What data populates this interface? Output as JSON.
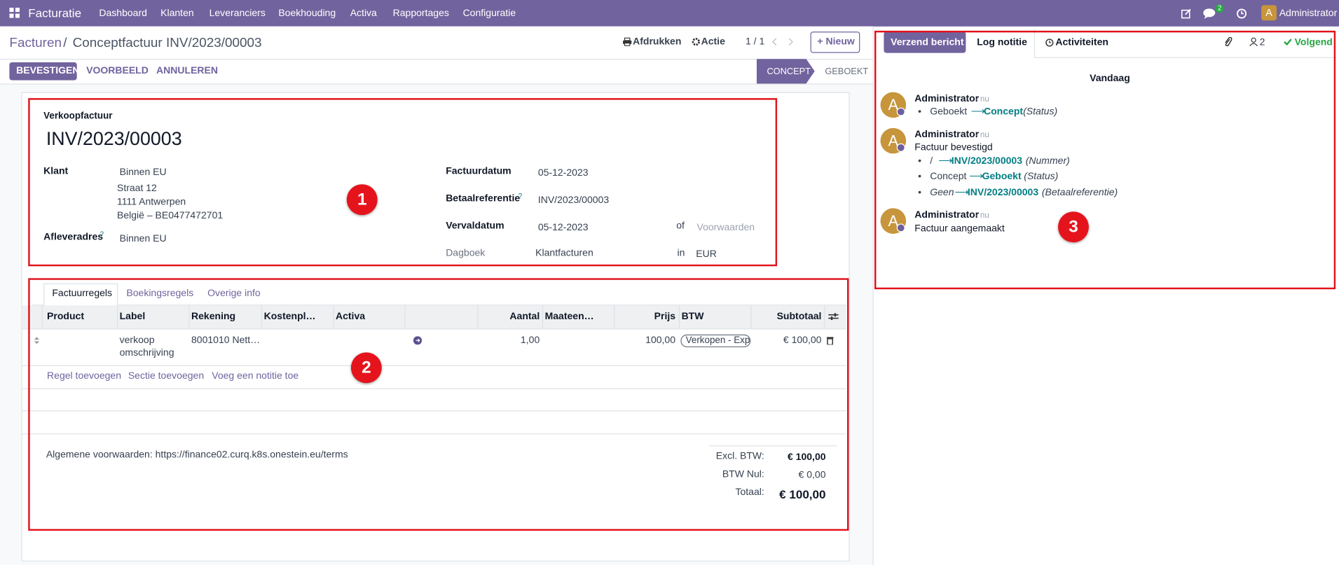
{
  "navbar": {
    "app": "Facturatie",
    "menu": [
      "Dashboard",
      "Klanten",
      "Leveranciers",
      "Boekhouding",
      "Activa",
      "Rapportages",
      "Configuratie"
    ],
    "messages_badge": "2",
    "user_initial": "A",
    "user": "Administrator"
  },
  "control_panel": {
    "breadcrumb": [
      "Facturen",
      "Conceptfactuur INV/2023/00003"
    ],
    "separator": "/",
    "print": "Afdrukken",
    "action": "Actie",
    "pager": "1 / 1",
    "new": "Nieuw"
  },
  "statusbar": {
    "buttons": [
      "BEVESTIGEN",
      "VOORBEELD",
      "ANNULEREN"
    ],
    "stages": [
      "CONCEPT",
      "GEBOEKT"
    ]
  },
  "form": {
    "type_label": "Verkoopfactuur",
    "number": "INV/2023/00003",
    "help": "?",
    "fields_left": [
      {
        "label": "Klant",
        "value": "Binnen EU",
        "address": [
          "Straat 12",
          "1111 Antwerpen",
          "België – BE0477472701"
        ]
      },
      {
        "label": "Afleveradres",
        "value": "Binnen EU"
      }
    ],
    "fields_right": [
      {
        "label": "Factuurdatum",
        "value": "05-12-2023"
      },
      {
        "label": "Betaalreferentie",
        "value": "INV/2023/00003"
      },
      {
        "label": "Vervaldatum",
        "value": "05-12-2023",
        "connector": "of",
        "extra": "Voorwaarden"
      },
      {
        "label": "Dagboek",
        "value": "Klantfacturen",
        "connector": "in",
        "extra": "EUR"
      }
    ]
  },
  "tabs": [
    "Factuurregels",
    "Boekingsregels",
    "Overige info"
  ],
  "table": {
    "headers": [
      "Product",
      "Label",
      "Rekening",
      "Kostenpl…",
      "Activa",
      "Aantal",
      "Maateen…",
      "Prijs",
      "BTW",
      "Subtotaal"
    ],
    "rows": [
      {
        "label": [
          "verkoop",
          "omschrijving"
        ],
        "account": "8001010 Nett…",
        "quantity": "1,00",
        "price": "100,00",
        "tax": "Verkopen - Expor",
        "subtotal": "€ 100,00"
      }
    ],
    "add_links": [
      "Regel toevoegen",
      "Sectie toevoegen",
      "Voeg een notitie toe"
    ]
  },
  "terms": "Algemene voorwaarden: https://finance02.curq.k8s.onestein.eu/terms",
  "totals": [
    {
      "label": "Excl. BTW:",
      "value": "€ 100,00"
    },
    {
      "label": "BTW Nul:",
      "value": "€ 0,00"
    },
    {
      "label": "Totaal:",
      "value": "€ 100,00"
    }
  ],
  "chatter": {
    "send": "Verzend bericht",
    "log": "Log notitie",
    "activities": "Activiteiten",
    "followers": "2",
    "follow": "Volgend",
    "day": "Vandaag",
    "messages": [
      {
        "initial": "A",
        "author": "Administrator",
        "time": "- nu",
        "tracking": [
          {
            "old": "Geboekt",
            "new": "Concept",
            "field": "(Status)"
          }
        ]
      },
      {
        "initial": "A",
        "author": "Administrator",
        "time": "- nu",
        "body": "Factuur bevestigd",
        "tracking": [
          {
            "old": "/",
            "new": "INV/2023/00003",
            "field": "(Nummer)"
          },
          {
            "old": "Concept",
            "new": "Geboekt",
            "field": "(Status)"
          },
          {
            "old": "Geen",
            "new": "INV/2023/00003",
            "field": "(Betaalreferentie)"
          }
        ]
      },
      {
        "initial": "A",
        "author": "Administrator",
        "time": "- nu",
        "body": "Factuur aangemaakt"
      }
    ]
  },
  "annotations": [
    "1",
    "2",
    "3"
  ]
}
